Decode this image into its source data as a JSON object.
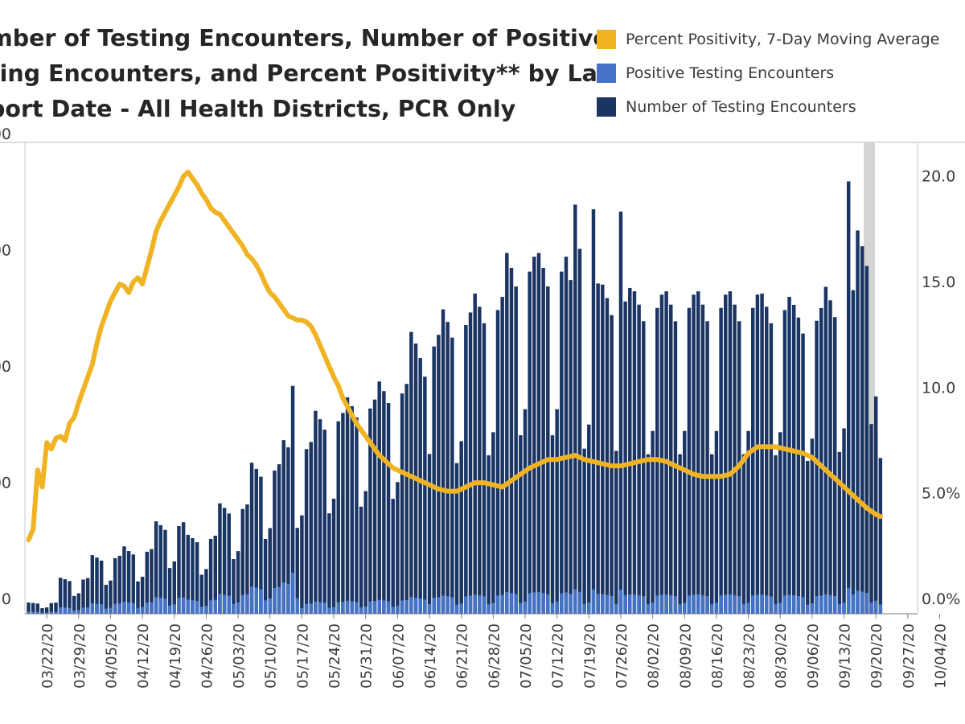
{
  "chart_data": {
    "type": "bar",
    "title_lines": [
      "mber of Testing Encounters, Number of Positive",
      "ting Encounters, and Percent Positivity** by Lab",
      "port Date - All Health Districts, PCR Only"
    ],
    "legend": [
      {
        "label": "Percent Positivity, 7-Day Moving Average",
        "color": "#f0b323"
      },
      {
        "label": "Positive Testing Encounters",
        "color": "#4472c4"
      },
      {
        "label": "Number of Testing Encounters",
        "color": "#1a3563"
      }
    ],
    "x_tick_labels": [
      "03/22/20",
      "03/29/20",
      "04/05/20",
      "04/12/20",
      "04/19/20",
      "04/26/20",
      "05/03/20",
      "05/10/20",
      "05/17/20",
      "05/24/20",
      "05/31/20",
      "06/07/20",
      "06/14/20",
      "06/21/20",
      "06/28/20",
      "07/05/20",
      "07/12/20",
      "07/19/20",
      "07/26/20",
      "08/02/20",
      "08/09/20",
      "08/16/20",
      "08/23/20",
      "08/30/20",
      "09/06/20",
      "09/13/20",
      "09/20/20",
      "09/27/20",
      "10/04/20"
    ],
    "y_left_tick_labels": [
      "0",
      "00",
      "00",
      "00",
      "00"
    ],
    "y_right_tick_labels": [
      "0.0%",
      "5.0%",
      "10.0",
      "15.0",
      "20.0"
    ],
    "y_left_range": [
      0,
      20000
    ],
    "y_right_range": [
      0,
      22
    ],
    "start_date": "03/18/20",
    "tests_weekly_pattern": [
      0.55,
      0.92,
      0.96,
      0.97,
      0.93,
      0.88,
      0.48
    ],
    "tests_weekly_level": [
      500,
      1600,
      2600,
      2900,
      4100,
      3500,
      4900,
      6700,
      7700,
      9000,
      9600,
      10300,
      12500,
      13500,
      14200,
      16000,
      16000,
      14800,
      14600,
      14300,
      14300,
      14300,
      14300,
      14200,
      13700,
      14500,
      17000,
      17400,
      15000,
      13500
    ],
    "spike_days": [
      {
        "day": 21,
        "value": 2900
      },
      {
        "day": 58,
        "value": 9800
      },
      {
        "day": 87,
        "value": 10200
      },
      {
        "day": 120,
        "value": 17600
      },
      {
        "day": 121,
        "value": 15700
      },
      {
        "day": 124,
        "value": 17400
      },
      {
        "day": 130,
        "value": 17300
      },
      {
        "day": 180,
        "value": 18600
      }
    ],
    "percent_positivity": [
      [
        0,
        3.5
      ],
      [
        1,
        4.0
      ],
      [
        2,
        6.8
      ],
      [
        3,
        6.0
      ],
      [
        4,
        8.1
      ],
      [
        5,
        7.8
      ],
      [
        6,
        8.3
      ],
      [
        7,
        8.4
      ],
      [
        8,
        8.2
      ],
      [
        9,
        9.0
      ],
      [
        10,
        9.3
      ],
      [
        11,
        10.0
      ],
      [
        12,
        10.6
      ],
      [
        13,
        11.2
      ],
      [
        14,
        11.8
      ],
      [
        15,
        12.8
      ],
      [
        16,
        13.6
      ],
      [
        17,
        14.2
      ],
      [
        18,
        14.8
      ],
      [
        19,
        15.2
      ],
      [
        20,
        15.6
      ],
      [
        21,
        15.5
      ],
      [
        22,
        15.2
      ],
      [
        23,
        15.7
      ],
      [
        24,
        15.9
      ],
      [
        25,
        15.6
      ],
      [
        26,
        16.4
      ],
      [
        27,
        17.2
      ],
      [
        28,
        18.1
      ],
      [
        29,
        18.6
      ],
      [
        30,
        19.0
      ],
      [
        31,
        19.4
      ],
      [
        32,
        19.8
      ],
      [
        33,
        20.2
      ],
      [
        34,
        20.7
      ],
      [
        35,
        20.9
      ],
      [
        36,
        20.6
      ],
      [
        37,
        20.3
      ],
      [
        38,
        19.9
      ],
      [
        39,
        19.6
      ],
      [
        40,
        19.2
      ],
      [
        41,
        19.0
      ],
      [
        42,
        18.9
      ],
      [
        43,
        18.6
      ],
      [
        44,
        18.3
      ],
      [
        45,
        18.0
      ],
      [
        46,
        17.7
      ],
      [
        47,
        17.4
      ],
      [
        48,
        17.0
      ],
      [
        49,
        16.8
      ],
      [
        50,
        16.5
      ],
      [
        51,
        16.1
      ],
      [
        52,
        15.6
      ],
      [
        53,
        15.2
      ],
      [
        54,
        15.0
      ],
      [
        55,
        14.7
      ],
      [
        56,
        14.4
      ],
      [
        57,
        14.1
      ],
      [
        58,
        14.0
      ],
      [
        59,
        13.9
      ],
      [
        60,
        13.9
      ],
      [
        61,
        13.8
      ],
      [
        62,
        13.6
      ],
      [
        63,
        13.2
      ],
      [
        64,
        12.7
      ],
      [
        65,
        12.2
      ],
      [
        66,
        11.7
      ],
      [
        67,
        11.2
      ],
      [
        68,
        10.8
      ],
      [
        69,
        10.2
      ],
      [
        70,
        9.8
      ],
      [
        71,
        9.4
      ],
      [
        72,
        9.0
      ],
      [
        73,
        8.7
      ],
      [
        74,
        8.4
      ],
      [
        75,
        8.1
      ],
      [
        76,
        7.8
      ],
      [
        77,
        7.5
      ],
      [
        78,
        7.3
      ],
      [
        79,
        7.1
      ],
      [
        80,
        6.9
      ],
      [
        82,
        6.7
      ],
      [
        84,
        6.5
      ],
      [
        86,
        6.3
      ],
      [
        88,
        6.1
      ],
      [
        90,
        5.9
      ],
      [
        92,
        5.8
      ],
      [
        94,
        5.8
      ],
      [
        96,
        6.0
      ],
      [
        98,
        6.2
      ],
      [
        100,
        6.2
      ],
      [
        102,
        6.1
      ],
      [
        104,
        6.0
      ],
      [
        106,
        6.3
      ],
      [
        108,
        6.6
      ],
      [
        110,
        6.9
      ],
      [
        112,
        7.1
      ],
      [
        114,
        7.3
      ],
      [
        116,
        7.3
      ],
      [
        118,
        7.4
      ],
      [
        120,
        7.5
      ],
      [
        122,
        7.3
      ],
      [
        124,
        7.2
      ],
      [
        126,
        7.1
      ],
      [
        128,
        7.0
      ],
      [
        130,
        7.0
      ],
      [
        132,
        7.1
      ],
      [
        134,
        7.2
      ],
      [
        136,
        7.3
      ],
      [
        138,
        7.3
      ],
      [
        140,
        7.2
      ],
      [
        142,
        7.0
      ],
      [
        144,
        6.8
      ],
      [
        146,
        6.6
      ],
      [
        148,
        6.5
      ],
      [
        150,
        6.5
      ],
      [
        152,
        6.5
      ],
      [
        154,
        6.6
      ],
      [
        156,
        7.0
      ],
      [
        158,
        7.6
      ],
      [
        160,
        7.9
      ],
      [
        162,
        7.9
      ],
      [
        164,
        7.9
      ],
      [
        166,
        7.8
      ],
      [
        168,
        7.7
      ],
      [
        170,
        7.6
      ],
      [
        172,
        7.4
      ],
      [
        174,
        7.0
      ],
      [
        176,
        6.6
      ],
      [
        178,
        6.2
      ],
      [
        180,
        5.8
      ],
      [
        182,
        5.4
      ],
      [
        184,
        5.0
      ],
      [
        186,
        4.7
      ],
      [
        187,
        4.6
      ]
    ],
    "positive_share": 0.06
  }
}
